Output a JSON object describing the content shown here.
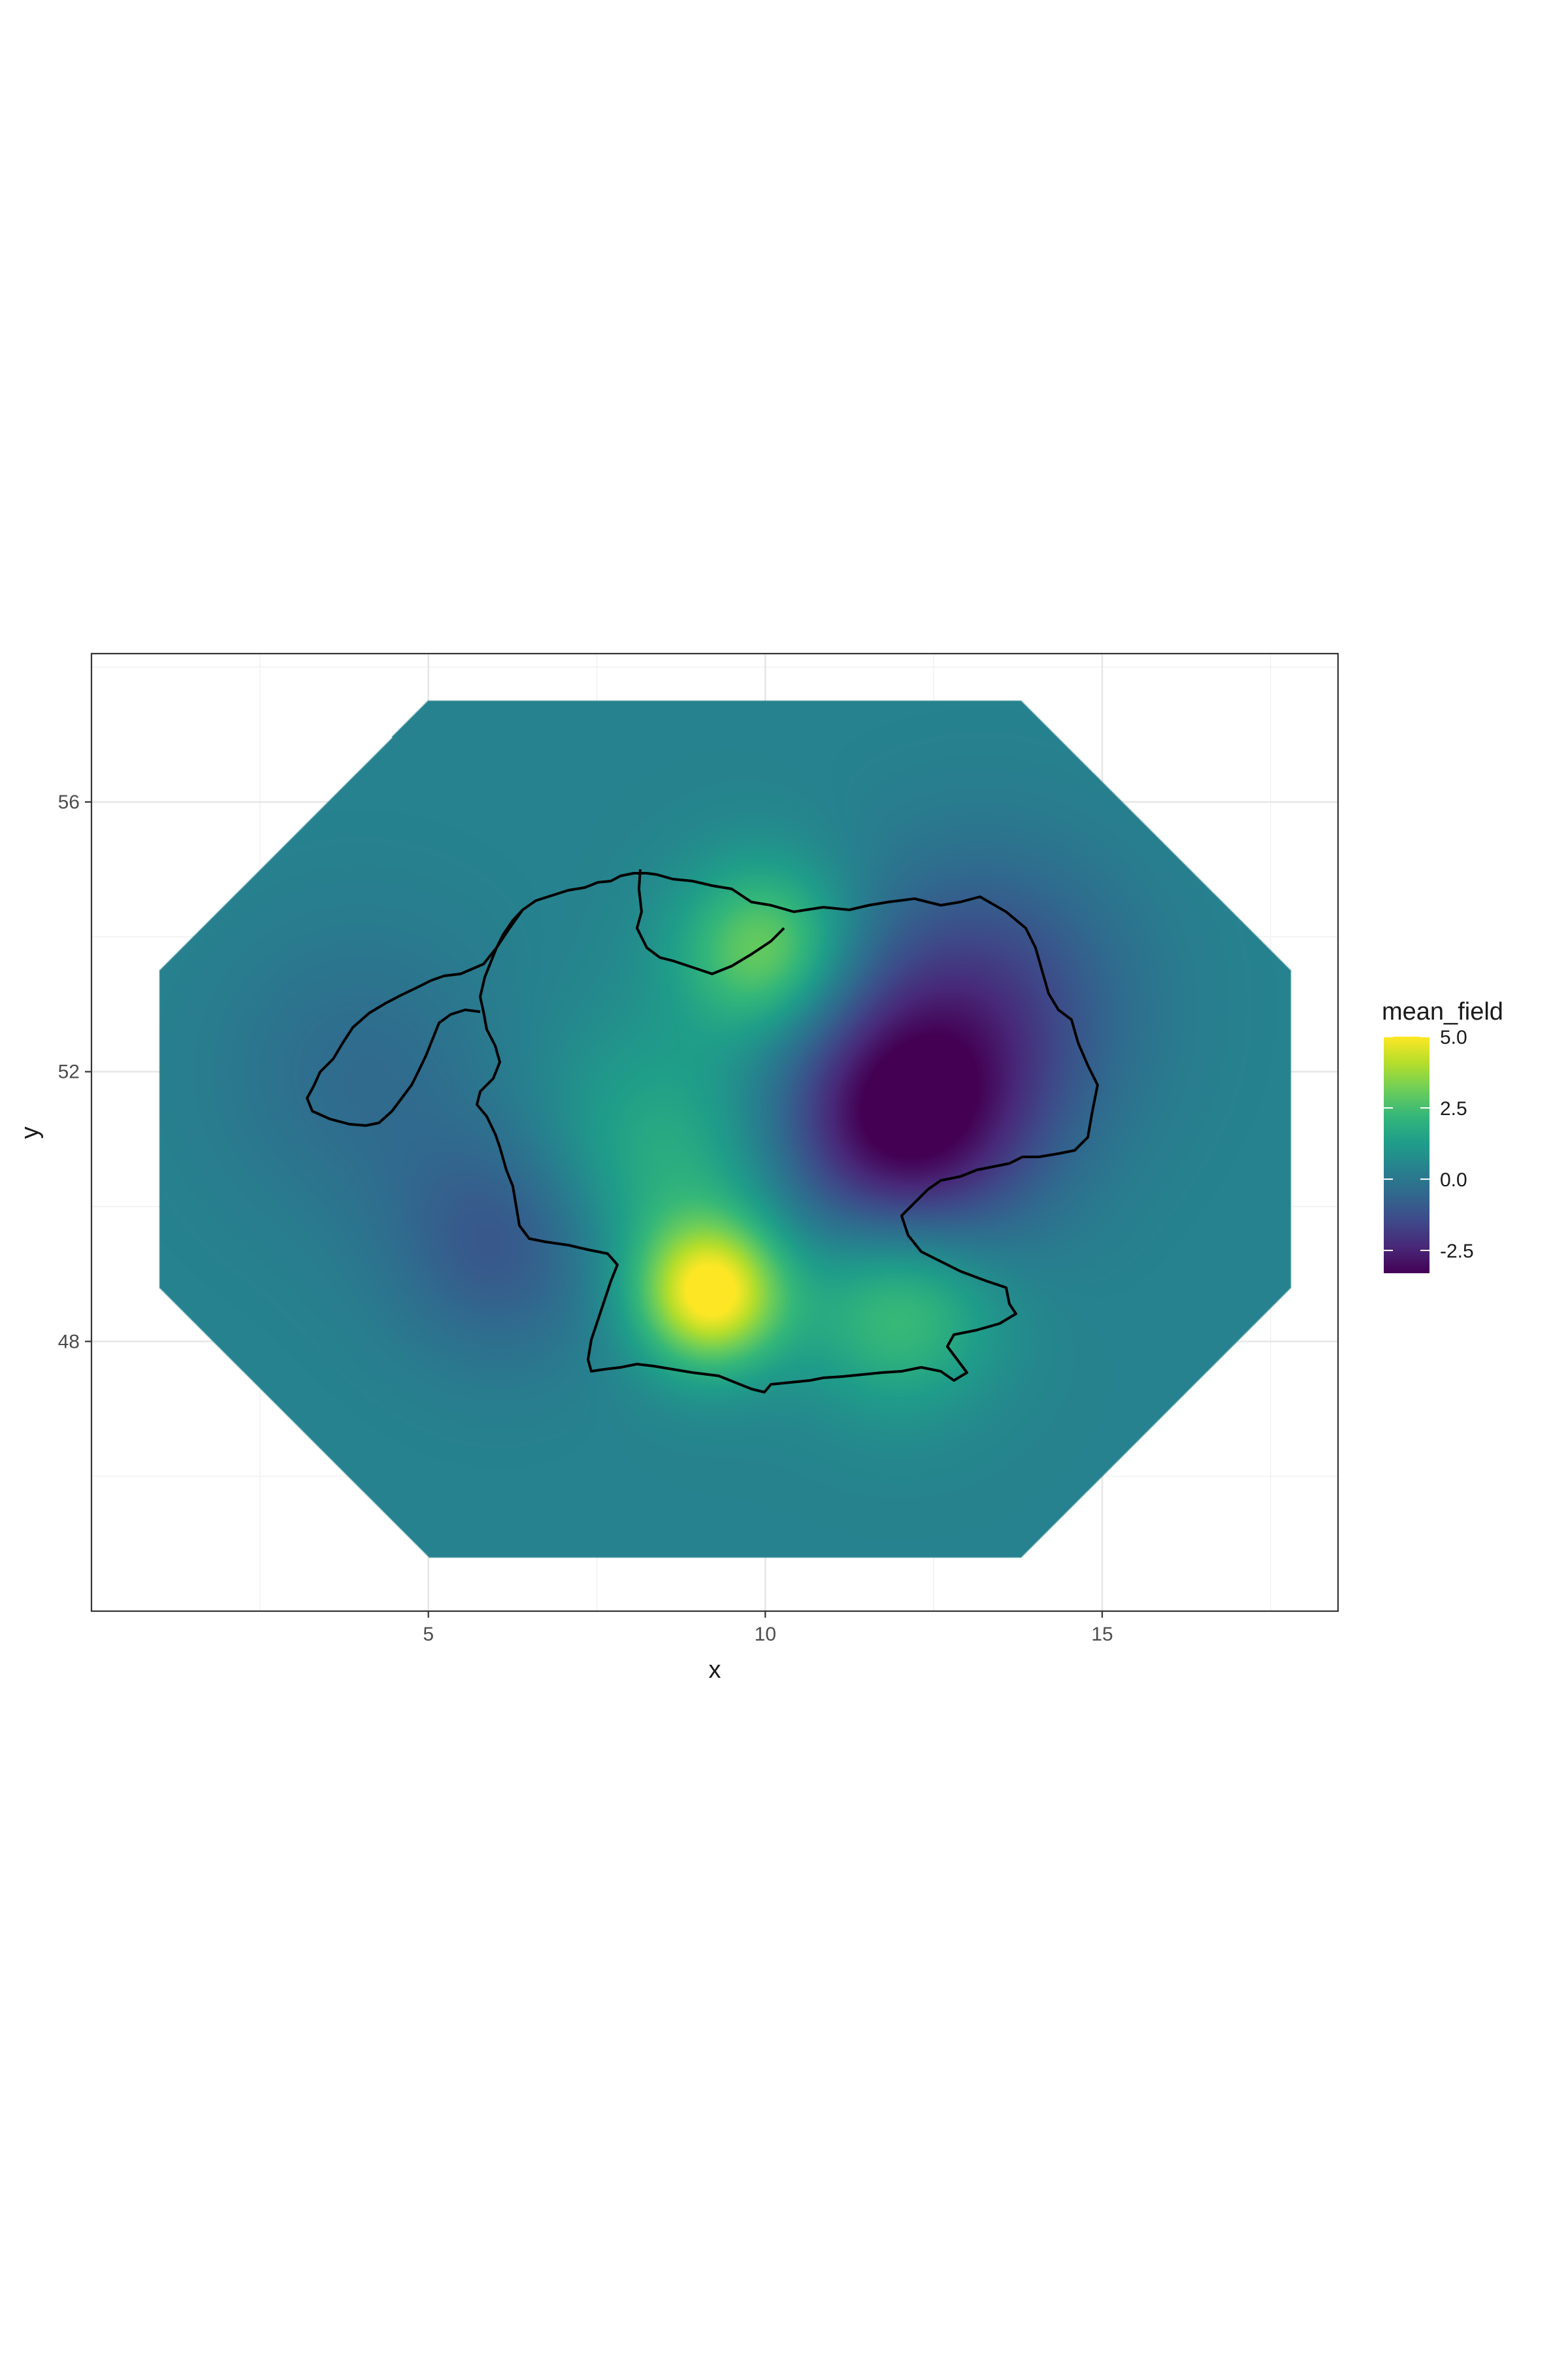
{
  "chart_data": {
    "type": "heatmap",
    "title": "",
    "xlabel": "x",
    "ylabel": "y",
    "xlim": [
      0,
      18.5
    ],
    "ylim": [
      44,
      58.2
    ],
    "x_ticks": [
      5,
      10,
      15
    ],
    "x_tick_labels": [
      "5",
      "10",
      "15"
    ],
    "y_ticks": [
      48,
      52,
      56
    ],
    "y_tick_labels": [
      "48",
      "52",
      "56"
    ],
    "grid": true,
    "theme": "black-and-white",
    "colormap": "viridis",
    "fill_variable": "mean_field",
    "value_range": [
      -3.3,
      5.0
    ],
    "field_extent": {
      "x": [
        1.0,
        17.8
      ],
      "y": [
        44.8,
        57.5
      ]
    },
    "field_baseline": 0.4,
    "field_features": [
      {
        "x": 9.2,
        "y": 48.7,
        "amplitude": 4.6,
        "spread": 0.75
      },
      {
        "x": 12.0,
        "y": 48.5,
        "amplitude": 2.2,
        "spread": 1.0
      },
      {
        "x": 10.0,
        "y": 53.8,
        "amplitude": 2.8,
        "spread": 0.9
      },
      {
        "x": 8.5,
        "y": 50.6,
        "amplitude": 1.6,
        "spread": 1.4
      },
      {
        "x": 12.0,
        "y": 51.2,
        "amplitude": -3.7,
        "spread": 1.3
      },
      {
        "x": 13.2,
        "y": 53.0,
        "amplitude": -2.0,
        "spread": 1.5
      },
      {
        "x": 6.2,
        "y": 49.5,
        "amplitude": -1.6,
        "spread": 1.2
      },
      {
        "x": 4.0,
        "y": 52.0,
        "amplitude": -0.8,
        "spread": 1.5
      }
    ],
    "overlay": "country outline",
    "legend": {
      "title": "mean_field",
      "position": "right",
      "breaks": [
        5.0,
        2.5,
        0.0,
        -2.5
      ],
      "labels": [
        "5.0",
        "2.5",
        "0.0",
        "-2.5"
      ],
      "colors": [
        "#440154",
        "#482878",
        "#3e4a89",
        "#31688e",
        "#26828e",
        "#1f9e89",
        "#35b779",
        "#6ece58",
        "#b5de2b",
        "#fde725"
      ]
    }
  }
}
